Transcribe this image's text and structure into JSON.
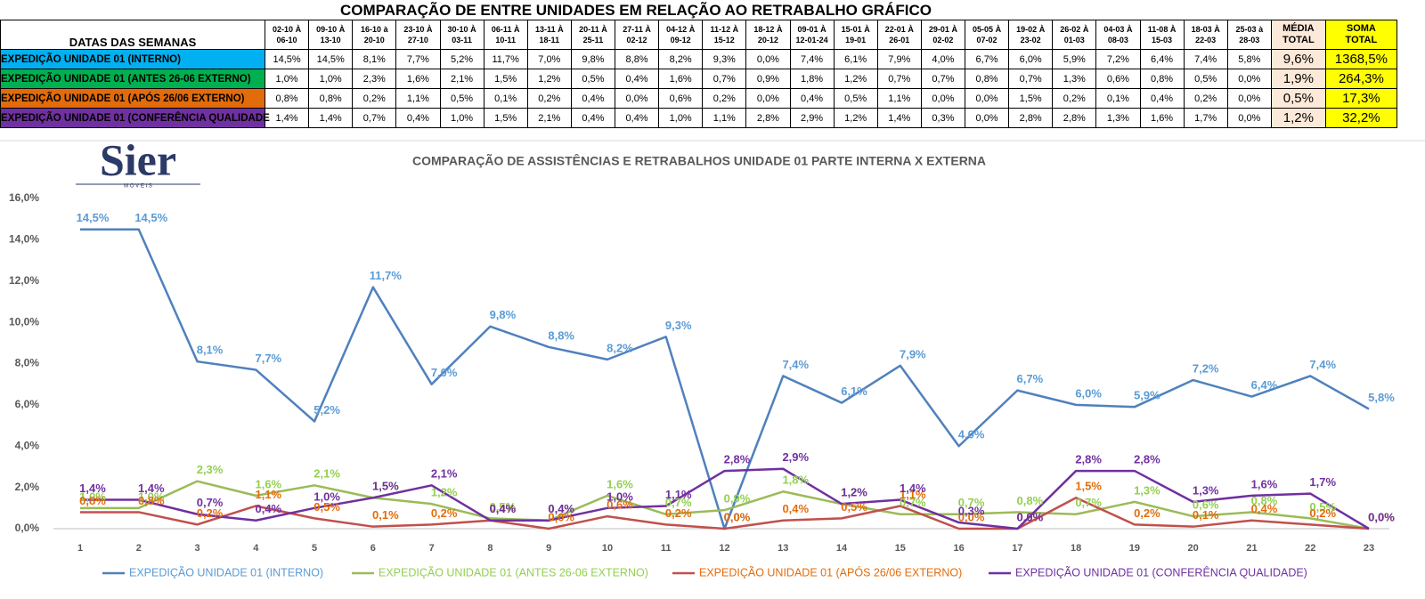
{
  "table": {
    "title": "COMPARAÇÃO DE ENTRE UNIDADES EM RELAÇÃO AO RETRABALHO GRÁFICO",
    "header": {
      "label": "DATAS DAS SEMANAS",
      "weeks": [
        [
          "02-10 À",
          "06-10"
        ],
        [
          "09-10 À",
          "13-10"
        ],
        [
          "16-10 à",
          "20-10"
        ],
        [
          "23-10 À",
          "27-10"
        ],
        [
          "30-10 À",
          "03-11"
        ],
        [
          "06-11 À",
          "10-11"
        ],
        [
          "13-11 À",
          "18-11"
        ],
        [
          "20-11 À",
          "25-11"
        ],
        [
          "27-11 À",
          "02-12"
        ],
        [
          "04-12 À",
          "09-12"
        ],
        [
          "11-12 À",
          "15-12"
        ],
        [
          "18-12 À",
          "20-12"
        ],
        [
          "09-01 À",
          "12-01-24"
        ],
        [
          "15-01 À",
          "19-01"
        ],
        [
          "22-01 À",
          "26-01"
        ],
        [
          "29-01 À",
          "02-02"
        ],
        [
          "05-05 À",
          "07-02"
        ],
        [
          "19-02 À",
          "23-02"
        ],
        [
          "26-02 À",
          "01-03"
        ],
        [
          "04-03 À",
          "08-03"
        ],
        [
          "11-08 À",
          "15-03"
        ],
        [
          "18-03 À",
          "22-03"
        ],
        [
          "25-03 à",
          "28-03"
        ]
      ],
      "media": [
        "MÉDIA",
        "TOTAL"
      ],
      "soma": [
        "SOMA",
        "TOTAL"
      ]
    },
    "rows": [
      {
        "label": "EXPEDIÇÃO UNIDADE 01 (INTERNO)",
        "color": "#00b0f0",
        "values": [
          "14,5%",
          "14,5%",
          "8,1%",
          "7,7%",
          "5,2%",
          "11,7%",
          "7,0%",
          "9,8%",
          "8,8%",
          "8,2%",
          "9,3%",
          "0,0%",
          "7,4%",
          "6,1%",
          "7,9%",
          "4,0%",
          "6,7%",
          "6,0%",
          "5,9%",
          "7,2%",
          "6,4%",
          "7,4%",
          "5,8%"
        ],
        "media": "9,6%",
        "soma": "1368,5%"
      },
      {
        "label": "EXPEDIÇÃO UNIDADE 01 (ANTES 26-06 EXTERNO)",
        "color": "#00b050",
        "values": [
          "1,0%",
          "1,0%",
          "2,3%",
          "1,6%",
          "2,1%",
          "1,5%",
          "1,2%",
          "0,5%",
          "0,4%",
          "1,6%",
          "0,7%",
          "0,9%",
          "1,8%",
          "1,2%",
          "0,7%",
          "0,7%",
          "0,8%",
          "0,7%",
          "1,3%",
          "0,6%",
          "0,8%",
          "0,5%",
          "0,0%"
        ],
        "media": "1,9%",
        "soma": "264,3%"
      },
      {
        "label": "EXPEDIÇÃO UNIDADE 01 (APÓS 26/06 EXTERNO)",
        "color": "#e26b0a",
        "values": [
          "0,8%",
          "0,8%",
          "0,2%",
          "1,1%",
          "0,5%",
          "0,1%",
          "0,2%",
          "0,4%",
          "0,0%",
          "0,6%",
          "0,2%",
          "0,0%",
          "0,4%",
          "0,5%",
          "1,1%",
          "0,0%",
          "0,0%",
          "1,5%",
          "0,2%",
          "0,1%",
          "0,4%",
          "0,2%",
          "0,0%"
        ],
        "media": "0,5%",
        "soma": "17,3%"
      },
      {
        "label": "EXPEDIÇÃO UNIDADE 01 (CONFERÊNCIA QUALIDADE",
        "color": "#7030a0",
        "values": [
          "1,4%",
          "1,4%",
          "0,7%",
          "0,4%",
          "1,0%",
          "1,5%",
          "2,1%",
          "0,4%",
          "0,4%",
          "1,0%",
          "1,1%",
          "2,8%",
          "2,9%",
          "1,2%",
          "1,4%",
          "0,3%",
          "0,0%",
          "2,8%",
          "2,8%",
          "1,3%",
          "1,6%",
          "1,7%",
          "0,0%"
        ],
        "media": "1,2%",
        "soma": "32,2%"
      }
    ]
  },
  "logo": {
    "name": "Sier",
    "sub": "M O V E I S"
  },
  "chart_data": {
    "type": "line",
    "title": "COMPARAÇÃO DE ASSISTÊNCIAS E RETRABALHOS UNIDADE 01 PARTE INTERNA X EXTERNA",
    "categories": [
      "1",
      "2",
      "3",
      "4",
      "5",
      "6",
      "7",
      "8",
      "9",
      "10",
      "11",
      "12",
      "13",
      "14",
      "15",
      "16",
      "17",
      "18",
      "19",
      "20",
      "21",
      "22",
      "23"
    ],
    "ylim": [
      0,
      16
    ],
    "yticks": [
      {
        "value": 0,
        "label": "0,0%"
      },
      {
        "value": 2,
        "label": "2,0%"
      },
      {
        "value": 4,
        "label": "4,0%"
      },
      {
        "value": 6,
        "label": "6,0%"
      },
      {
        "value": 8,
        "label": "8,0%"
      },
      {
        "value": 10,
        "label": "10,0%"
      },
      {
        "value": 12,
        "label": "12,0%"
      },
      {
        "value": 14,
        "label": "14,0%"
      },
      {
        "value": 16,
        "label": "16,0%"
      }
    ],
    "grid": false,
    "legend": "bottom",
    "series": [
      {
        "name": "EXPEDIÇÃO UNIDADE 01 (INTERNO)",
        "color": "#4f81bd",
        "label_color": "#5b9bd5",
        "values": [
          14.5,
          14.5,
          8.1,
          7.7,
          5.2,
          11.7,
          7.0,
          9.8,
          8.8,
          8.2,
          9.3,
          0.0,
          7.4,
          6.1,
          7.9,
          4.0,
          6.7,
          6.0,
          5.9,
          7.2,
          6.4,
          7.4,
          5.8
        ],
        "value_labels": [
          "14,5%",
          "14,5%",
          "8,1%",
          "7,7%",
          "5,2%",
          "11,7%",
          "7,0%",
          "9,8%",
          "8,8%",
          "8,2%",
          "9,3%",
          "0,0%",
          "7,4%",
          "6,1%",
          "7,9%",
          "4,0%",
          "6,7%",
          "6,0%",
          "5,9%",
          "7,2%",
          "6,4%",
          "7,4%",
          "5,8%"
        ]
      },
      {
        "name": "EXPEDIÇÃO UNIDADE 01 (ANTES 26-06 EXTERNO)",
        "color": "#9bbb59",
        "label_color": "#92d050",
        "values": [
          1.0,
          1.0,
          2.3,
          1.6,
          2.1,
          1.5,
          1.2,
          0.5,
          0.4,
          1.6,
          0.7,
          0.9,
          1.8,
          1.2,
          0.7,
          0.7,
          0.8,
          0.7,
          1.3,
          0.6,
          0.8,
          0.5,
          0.0
        ],
        "value_labels": [
          "1,0%",
          "1,0%",
          "2,3%",
          "1,6%",
          "2,1%",
          "1,5%",
          "1,2%",
          "0,5%",
          "0,4%",
          "1,6%",
          "0,7%",
          "0,9%",
          "1,8%",
          "1,2%",
          "0,7%",
          "0,7%",
          "0,8%",
          "0,7%",
          "1,3%",
          "0,6%",
          "0,8%",
          "0,5%",
          "0,0%"
        ]
      },
      {
        "name": "EXPEDIÇÃO UNIDADE 01 (APÓS 26/06 EXTERNO)",
        "color": "#c0504d",
        "label_color": "#e46c0a",
        "values": [
          0.8,
          0.8,
          0.2,
          1.1,
          0.5,
          0.1,
          0.2,
          0.4,
          0.0,
          0.6,
          0.2,
          0.0,
          0.4,
          0.5,
          1.1,
          0.0,
          0.0,
          1.5,
          0.2,
          0.1,
          0.4,
          0.2,
          0.0
        ],
        "value_labels": [
          "0,8%",
          "0,8%",
          "0,2%",
          "1,1%",
          "0,5%",
          "0,1%",
          "0,2%",
          "0,4%",
          "0,0%",
          "0,6%",
          "0,2%",
          "0,0%",
          "0,4%",
          "0,5%",
          "1,1%",
          "0,0%",
          "0,0%",
          "1,5%",
          "0,2%",
          "0,1%",
          "0,4%",
          "0,2%",
          "0,0%"
        ]
      },
      {
        "name": "EXPEDIÇÃO UNIDADE 01 (CONFERÊNCIA QUALIDADE)",
        "color": "#7030a0",
        "label_color": "#7030a0",
        "values": [
          1.4,
          1.4,
          0.7,
          0.4,
          1.0,
          1.5,
          2.1,
          0.4,
          0.4,
          1.0,
          1.1,
          2.8,
          2.9,
          1.2,
          1.4,
          0.3,
          0.0,
          2.8,
          2.8,
          1.3,
          1.6,
          1.7,
          0.0
        ],
        "value_labels": [
          "1,4%",
          "1,4%",
          "0,7%",
          "0,4%",
          "1,0%",
          "1,5%",
          "2,1%",
          "0,4%",
          "0,4%",
          "1,0%",
          "1,1%",
          "2,8%",
          "2,9%",
          "1,2%",
          "1,4%",
          "0,3%",
          "0,0%",
          "2,8%",
          "2,8%",
          "1,3%",
          "1,6%",
          "1,7%",
          "0,0%"
        ]
      }
    ]
  }
}
